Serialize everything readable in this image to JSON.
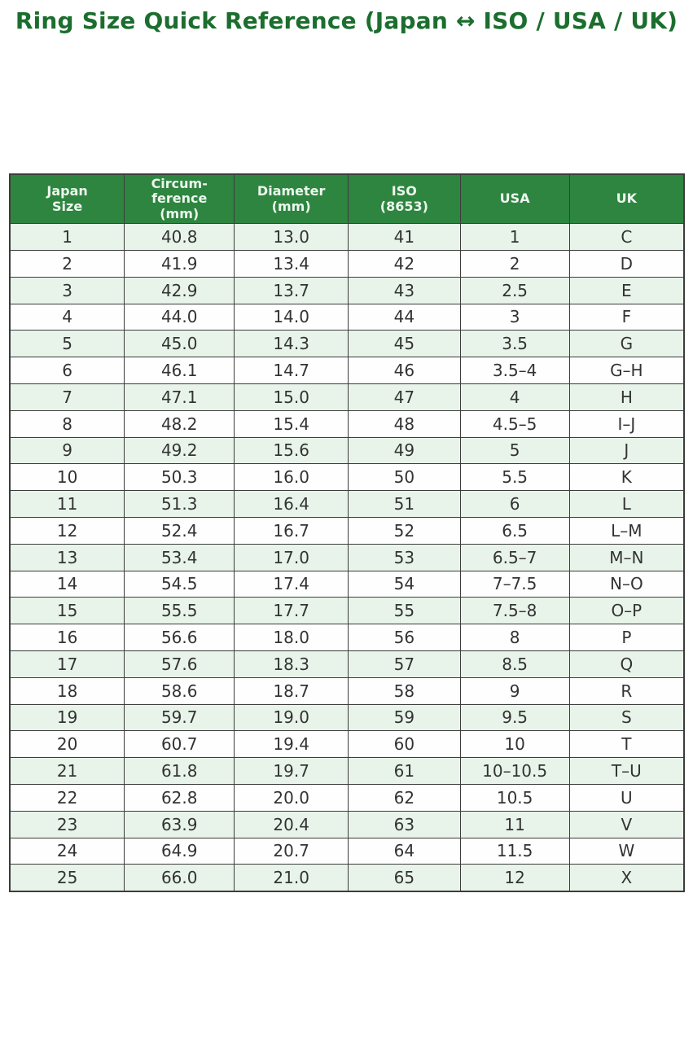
{
  "page": {
    "title": "Ring Size Quick Reference (Japan ↔ ISO / USA / UK)"
  },
  "colors": {
    "title": "#1b6e2e",
    "header_bg": "#2e8540",
    "header_text": "#ecf6ee",
    "stripe": "#e8f4e9",
    "row_bg": "#fdfefd",
    "border": "#3c3c3c",
    "cell_text": "#333333"
  },
  "chart_data": {
    "type": "table",
    "title": "Ring Size Quick Reference (Japan ↔ ISO / USA / UK)",
    "columns": [
      "Japan\nSize",
      "Circum-\nference\n(mm)",
      "Diameter\n(mm)",
      "ISO\n(8653)",
      "USA",
      "UK"
    ],
    "rows": [
      [
        "1",
        "40.8",
        "13.0",
        "41",
        "1",
        "C"
      ],
      [
        "2",
        "41.9",
        "13.4",
        "42",
        "2",
        "D"
      ],
      [
        "3",
        "42.9",
        "13.7",
        "43",
        "2.5",
        "E"
      ],
      [
        "4",
        "44.0",
        "14.0",
        "44",
        "3",
        "F"
      ],
      [
        "5",
        "45.0",
        "14.3",
        "45",
        "3.5",
        "G"
      ],
      [
        "6",
        "46.1",
        "14.7",
        "46",
        "3.5–4",
        "G–H"
      ],
      [
        "7",
        "47.1",
        "15.0",
        "47",
        "4",
        "H"
      ],
      [
        "8",
        "48.2",
        "15.4",
        "48",
        "4.5–5",
        "I–J"
      ],
      [
        "9",
        "49.2",
        "15.6",
        "49",
        "5",
        "J"
      ],
      [
        "10",
        "50.3",
        "16.0",
        "50",
        "5.5",
        "K"
      ],
      [
        "11",
        "51.3",
        "16.4",
        "51",
        "6",
        "L"
      ],
      [
        "12",
        "52.4",
        "16.7",
        "52",
        "6.5",
        "L–M"
      ],
      [
        "13",
        "53.4",
        "17.0",
        "53",
        "6.5–7",
        "M–N"
      ],
      [
        "14",
        "54.5",
        "17.4",
        "54",
        "7–7.5",
        "N–O"
      ],
      [
        "15",
        "55.5",
        "17.7",
        "55",
        "7.5–8",
        "O–P"
      ],
      [
        "16",
        "56.6",
        "18.0",
        "56",
        "8",
        "P"
      ],
      [
        "17",
        "57.6",
        "18.3",
        "57",
        "8.5",
        "Q"
      ],
      [
        "18",
        "58.6",
        "18.7",
        "58",
        "9",
        "R"
      ],
      [
        "19",
        "59.7",
        "19.0",
        "59",
        "9.5",
        "S"
      ],
      [
        "20",
        "60.7",
        "19.4",
        "60",
        "10",
        "T"
      ],
      [
        "21",
        "61.8",
        "19.7",
        "61",
        "10–10.5",
        "T–U"
      ],
      [
        "22",
        "62.8",
        "20.0",
        "62",
        "10.5",
        "U"
      ],
      [
        "23",
        "63.9",
        "20.4",
        "63",
        "11",
        "V"
      ],
      [
        "24",
        "64.9",
        "20.7",
        "64",
        "11.5",
        "W"
      ],
      [
        "25",
        "66.0",
        "21.0",
        "65",
        "12",
        "X"
      ]
    ],
    "layout": {
      "legend": false,
      "grid": true,
      "striped_rows": true,
      "column_width_percents": [
        17.0,
        16.3,
        16.9,
        16.6,
        16.2,
        17.0
      ]
    }
  }
}
